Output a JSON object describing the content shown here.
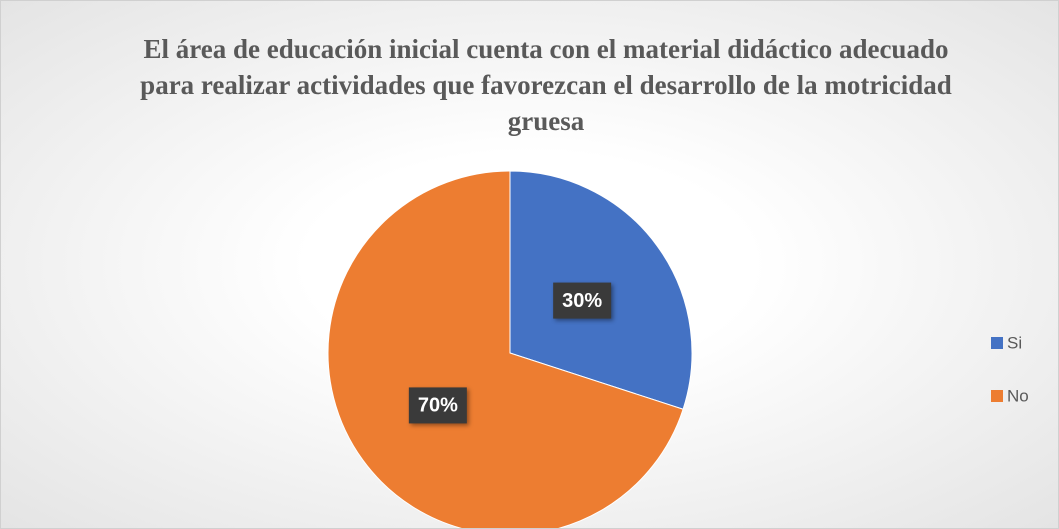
{
  "chart_data": {
    "type": "pie",
    "title": "El área de educación inicial cuenta con el material didáctico adecuado para realizar actividades que favorezcan el desarrollo de la motricidad gruesa",
    "categories": [
      "Si",
      "No"
    ],
    "values": [
      30,
      70
    ],
    "value_labels": [
      "30%",
      "70%"
    ],
    "colors": [
      "#4472c4",
      "#ed7d31"
    ],
    "legend": "right"
  }
}
